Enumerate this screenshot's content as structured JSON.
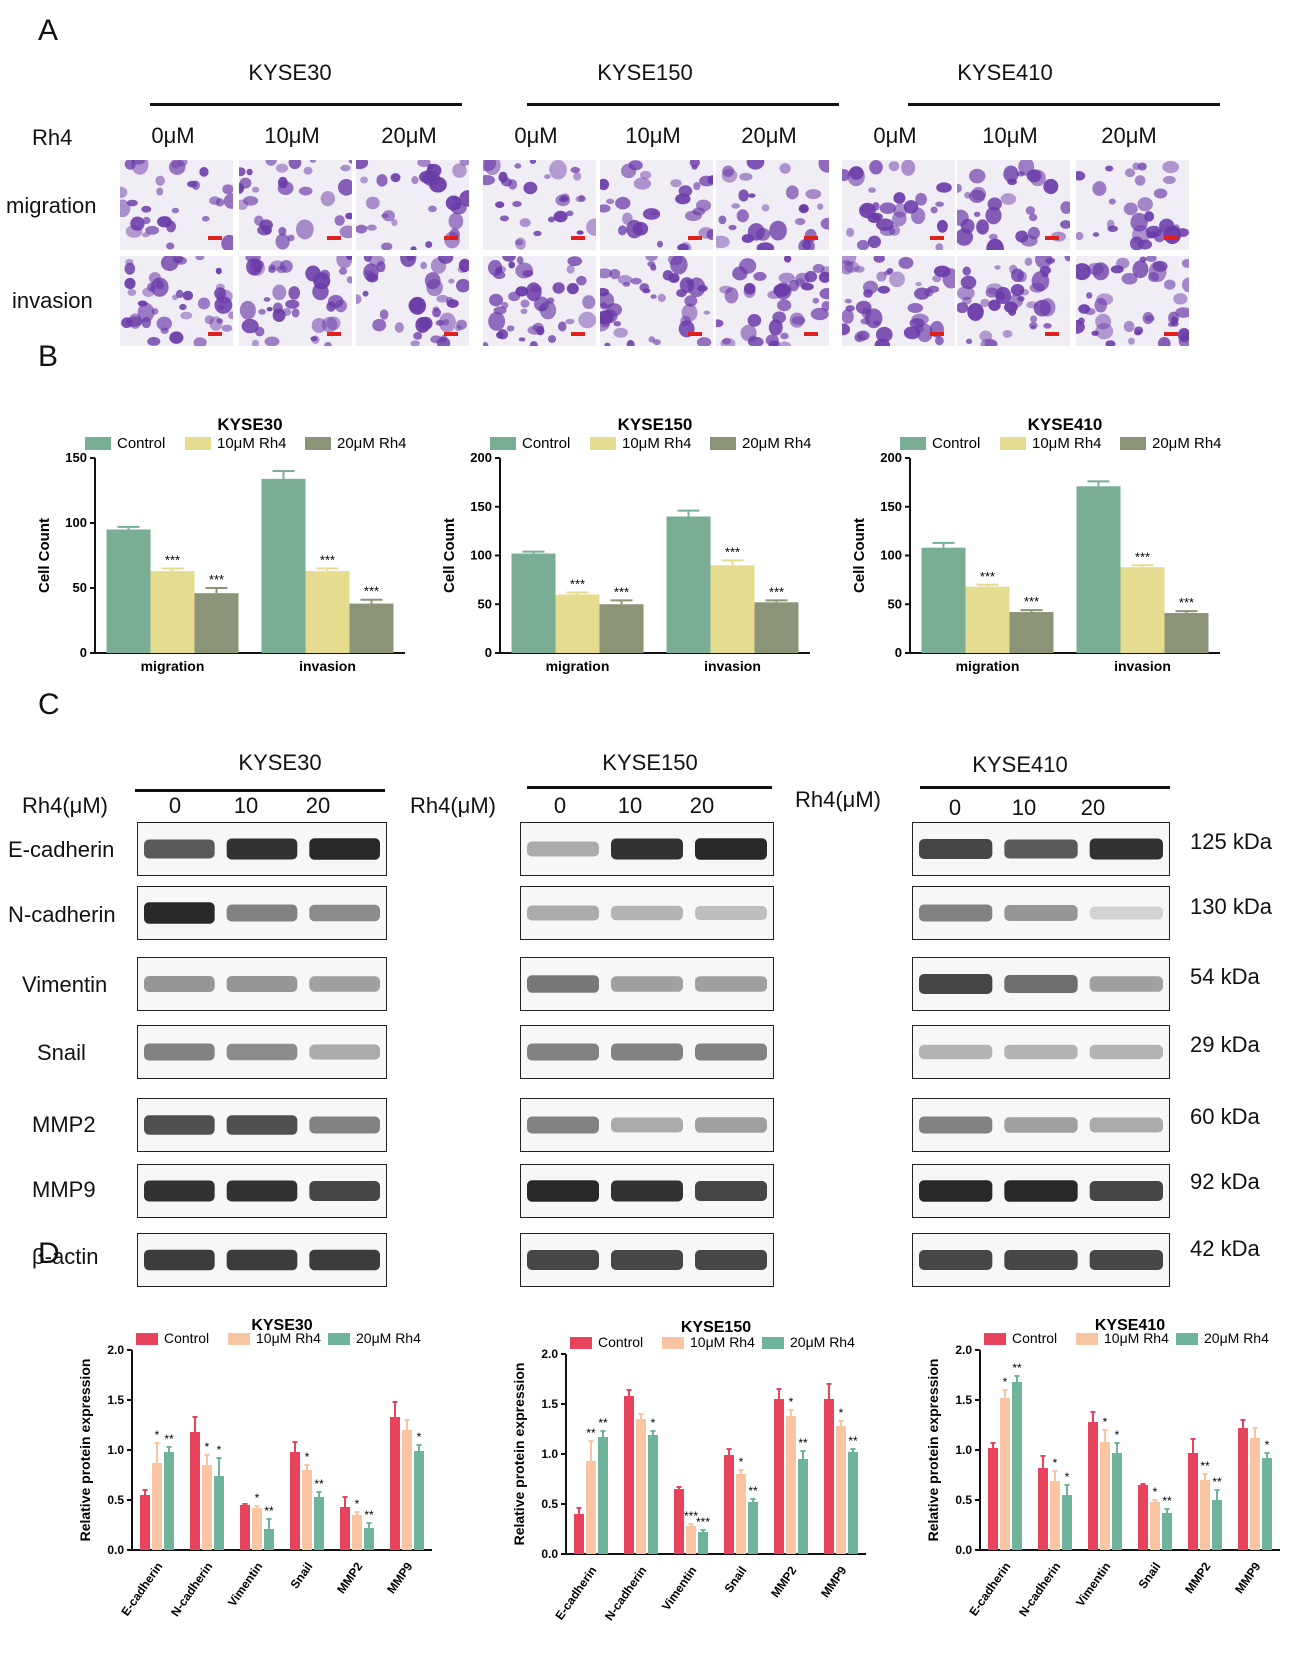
{
  "panels": {
    "a": "A",
    "b": "B",
    "c": "C",
    "d": "D"
  },
  "cell_lines": [
    "KYSE30",
    "KYSE150",
    "KYSE410"
  ],
  "panel_a": {
    "row_label_rh4": "Rh4",
    "concentrations": [
      "0μM",
      "10μM",
      "20μM"
    ],
    "rows": [
      "migration",
      "invasion"
    ]
  },
  "panel_c": {
    "rh4_label": "Rh4(μM)",
    "doses": [
      "0",
      "10",
      "20"
    ],
    "proteins": [
      "E-cadherin",
      "N-cadherin",
      "Vimentin",
      "Snail",
      "MMP2",
      "MMP9",
      "β-actin"
    ],
    "kda": [
      "125 kDa",
      "130 kDa",
      "54 kDa",
      "29 kDa",
      "60 kDa",
      "92 kDa",
      "42 kDa"
    ]
  },
  "colors": {
    "b_control": "#79ad94",
    "b_10": "#e6dc8f",
    "b_20": "#8c9478",
    "d_control": "#e8435c",
    "d_10": "#f8c4a2",
    "d_20": "#6fb39a",
    "stain": "#6a3aa8"
  },
  "chart_data": [
    {
      "type": "bar",
      "title": "KYSE30",
      "ylabel": "Cell Count",
      "ylim": [
        0,
        150
      ],
      "yticks": [
        0,
        50,
        100,
        150
      ],
      "categories": [
        "migration",
        "invasion"
      ],
      "series": [
        {
          "name": "Control",
          "values": [
            95,
            134
          ],
          "err": [
            2,
            6
          ]
        },
        {
          "name": "10μM Rh4",
          "values": [
            63,
            63
          ],
          "err": [
            2,
            2
          ],
          "sig": [
            "***",
            "***"
          ]
        },
        {
          "name": "20μM Rh4",
          "values": [
            46,
            38
          ],
          "err": [
            4,
            3
          ],
          "sig": [
            "***",
            "***"
          ]
        }
      ]
    },
    {
      "type": "bar",
      "title": "KYSE150",
      "ylabel": "Cell Count",
      "ylim": [
        0,
        200
      ],
      "yticks": [
        0,
        50,
        100,
        150,
        200
      ],
      "categories": [
        "migration",
        "invasion"
      ],
      "series": [
        {
          "name": "Control",
          "values": [
            102,
            140
          ],
          "err": [
            2,
            6
          ]
        },
        {
          "name": "10μM Rh4",
          "values": [
            60,
            90
          ],
          "err": [
            2,
            5
          ],
          "sig": [
            "***",
            "***"
          ]
        },
        {
          "name": "20μM Rh4",
          "values": [
            50,
            52
          ],
          "err": [
            4,
            2
          ],
          "sig": [
            "***",
            "***"
          ]
        }
      ]
    },
    {
      "type": "bar",
      "title": "KYSE410",
      "ylabel": "Cell Count",
      "ylim": [
        0,
        200
      ],
      "yticks": [
        0,
        50,
        100,
        150,
        200
      ],
      "categories": [
        "migration",
        "invasion"
      ],
      "series": [
        {
          "name": "Control",
          "values": [
            108,
            171
          ],
          "err": [
            5,
            5
          ]
        },
        {
          "name": "10μM Rh4",
          "values": [
            68,
            88
          ],
          "err": [
            2,
            2
          ],
          "sig": [
            "***",
            "***"
          ]
        },
        {
          "name": "20μM Rh4",
          "values": [
            42,
            41
          ],
          "err": [
            2,
            2
          ],
          "sig": [
            "***",
            "***"
          ]
        }
      ]
    },
    {
      "type": "bar",
      "title": "KYSE30",
      "ylabel": "Relative protein expression",
      "ylim": [
        0,
        2.0
      ],
      "yticks": [
        "0.0",
        "0.5",
        "1.0",
        "1.5",
        "2.0"
      ],
      "categories": [
        "E-cadherin",
        "N-cadherin",
        "Vimentin",
        "Snail",
        "MMP2",
        "MMP9"
      ],
      "series": [
        {
          "name": "Control",
          "values": [
            0.55,
            1.18,
            0.45,
            0.98,
            0.43,
            1.33
          ],
          "err": [
            0.05,
            0.15,
            0.01,
            0.1,
            0.1,
            0.15
          ]
        },
        {
          "name": "10μM Rh4",
          "values": [
            0.87,
            0.85,
            0.42,
            0.8,
            0.35,
            1.2
          ],
          "err": [
            0.2,
            0.1,
            0.02,
            0.05,
            0.03,
            0.1
          ],
          "sig": [
            "*",
            "*",
            "*",
            "*",
            "*",
            ""
          ]
        },
        {
          "name": "20μM Rh4",
          "values": [
            0.98,
            0.74,
            0.21,
            0.53,
            0.22,
            0.99
          ],
          "err": [
            0.05,
            0.18,
            0.1,
            0.05,
            0.05,
            0.06
          ],
          "sig": [
            "**",
            "*",
            "**",
            "**",
            "**",
            "*"
          ]
        }
      ]
    },
    {
      "type": "bar",
      "title": "KYSE150",
      "ylabel": "Relative protein expression",
      "ylim": [
        0,
        2.0
      ],
      "yticks": [
        "0.0",
        "0.5",
        "1.0",
        "1.5",
        "2.0"
      ],
      "categories": [
        "E-cadherin",
        "N-cadherin",
        "Vimentin",
        "Snail",
        "MMP2",
        "MMP9"
      ],
      "series": [
        {
          "name": "Control",
          "values": [
            0.4,
            1.58,
            0.65,
            0.99,
            1.55,
            1.55
          ],
          "err": [
            0.06,
            0.06,
            0.02,
            0.06,
            0.1,
            0.15
          ]
        },
        {
          "name": "10μM Rh4",
          "values": [
            0.93,
            1.35,
            0.28,
            0.8,
            1.38,
            1.28
          ],
          "err": [
            0.2,
            0.05,
            0.02,
            0.04,
            0.06,
            0.05
          ],
          "sig": [
            "**",
            "",
            "***",
            "*",
            "*",
            "*"
          ]
        },
        {
          "name": "20μM Rh4",
          "values": [
            1.17,
            1.19,
            0.22,
            0.52,
            0.95,
            1.02
          ],
          "err": [
            0.06,
            0.04,
            0.02,
            0.03,
            0.08,
            0.03
          ],
          "sig": [
            "**",
            "*",
            "***",
            "**",
            "**",
            "**"
          ]
        }
      ]
    },
    {
      "type": "bar",
      "title": "KYSE410",
      "ylabel": "Relative protein expression",
      "ylim": [
        0,
        2.0
      ],
      "yticks": [
        "0.0",
        "0.5",
        "1.0",
        "1.5",
        "2.0"
      ],
      "categories": [
        "E-cadherin",
        "N-cadherin",
        "Vimentin",
        "Snail",
        "MMP2",
        "MMP9"
      ],
      "series": [
        {
          "name": "Control",
          "values": [
            1.02,
            0.82,
            1.28,
            0.65,
            0.97,
            1.22
          ],
          "err": [
            0.05,
            0.12,
            0.1,
            0.01,
            0.14,
            0.08
          ]
        },
        {
          "name": "10μM Rh4",
          "values": [
            1.52,
            0.69,
            1.08,
            0.48,
            0.7,
            1.12
          ],
          "err": [
            0.08,
            0.1,
            0.12,
            0.02,
            0.06,
            0.1
          ],
          "sig": [
            "*",
            "*",
            "*",
            "*",
            "**",
            ""
          ]
        },
        {
          "name": "20μM Rh4",
          "values": [
            1.68,
            0.55,
            0.97,
            0.37,
            0.5,
            0.92
          ],
          "err": [
            0.06,
            0.1,
            0.1,
            0.04,
            0.1,
            0.05
          ],
          "sig": [
            "**",
            "*",
            "*",
            "**",
            "**",
            "*"
          ]
        }
      ]
    }
  ]
}
